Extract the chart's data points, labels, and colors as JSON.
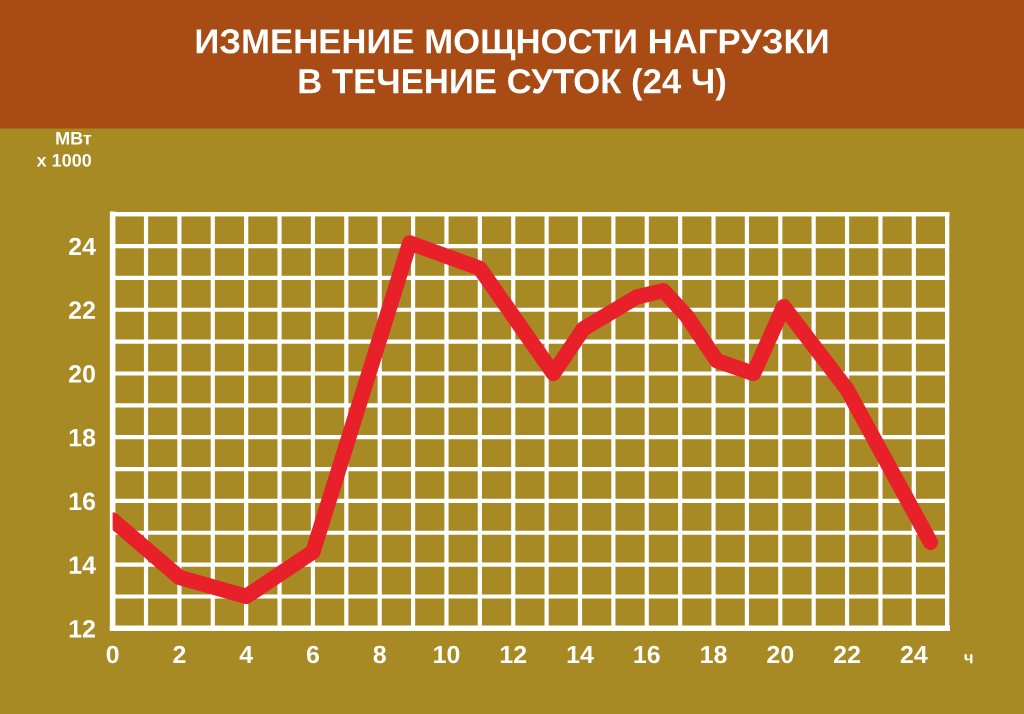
{
  "chart_data": {
    "type": "line",
    "title": "ИЗМЕНЕНИЕ МОЩНОСТИ НАГРУЗКИ\nВ ТЕЧЕНИЕ СУТОК (24 Ч)",
    "xlabel": "ч",
    "ylabel": "МВт\nх 1000",
    "series": [
      {
        "color": "#e8202a",
        "x": [
          0,
          2,
          4,
          6,
          8.9,
          11,
          13.2,
          14.1,
          15.7,
          16.5,
          17.2,
          18.1,
          19.2,
          20.1,
          22,
          24.5
        ],
        "values": [
          15.4,
          13.6,
          13.0,
          14.4,
          24.1,
          23.3,
          20.0,
          21.4,
          22.4,
          22.6,
          21.8,
          20.4,
          20.0,
          22.1,
          19.5,
          14.7
        ]
      }
    ],
    "xlim": [
      0,
      25
    ],
    "ylim": [
      12,
      25
    ],
    "xticks": [
      0,
      {
        "value": 1,
        "label": null
      },
      2,
      {
        "value": 3,
        "label": null
      },
      4,
      {
        "value": 5,
        "label": null
      },
      6,
      {
        "value": 7,
        "label": null
      },
      8,
      {
        "value": 9,
        "label": null
      },
      10,
      {
        "value": 11,
        "label": null
      },
      12,
      {
        "value": 13,
        "label": null
      },
      14,
      {
        "value": 15,
        "label": null
      },
      16,
      {
        "value": 17,
        "label": null
      },
      18,
      {
        "value": 19,
        "label": null
      },
      20,
      {
        "value": 21,
        "label": null
      },
      22,
      {
        "value": 23,
        "label": null
      },
      24,
      {
        "value": 25,
        "label": null
      }
    ],
    "yticks": [
      12,
      {
        "value": 13,
        "label": null
      },
      14,
      {
        "value": 15,
        "label": null
      },
      16,
      {
        "value": 17,
        "label": null
      },
      18,
      {
        "value": 19,
        "label": null
      },
      20,
      {
        "value": 21,
        "label": null
      },
      22,
      {
        "value": 23,
        "label": null
      },
      24,
      {
        "value": 25,
        "label": null
      }
    ],
    "grid": true,
    "marker": "none",
    "line_style": "solid",
    "legend": false
  }
}
